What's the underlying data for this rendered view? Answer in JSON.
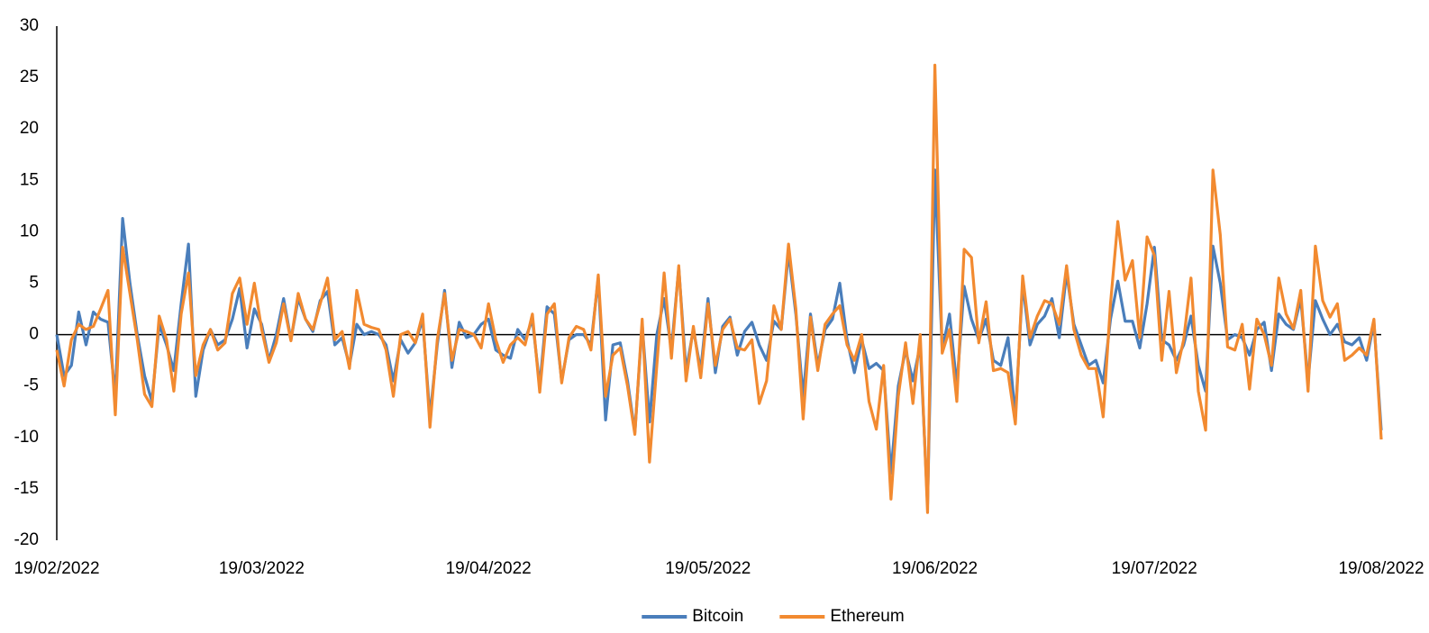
{
  "chart_data": {
    "type": "line",
    "categories": [
      "19/02/2022",
      null,
      null,
      null,
      null,
      null,
      null,
      null,
      null,
      null,
      null,
      null,
      null,
      null,
      null,
      null,
      null,
      null,
      null,
      null,
      null,
      null,
      null,
      null,
      null,
      null,
      null,
      null,
      "19/03/2022",
      null,
      null,
      null,
      null,
      null,
      null,
      null,
      null,
      null,
      null,
      null,
      null,
      null,
      null,
      null,
      null,
      null,
      null,
      null,
      null,
      null,
      null,
      null,
      null,
      null,
      null,
      null,
      null,
      null,
      null,
      "19/04/2022",
      null,
      null,
      null,
      null,
      null,
      null,
      null,
      null,
      null,
      null,
      null,
      null,
      null,
      null,
      null,
      null,
      null,
      null,
      null,
      null,
      null,
      null,
      null,
      null,
      null,
      null,
      null,
      null,
      null,
      "19/05/2022",
      null,
      null,
      null,
      null,
      null,
      null,
      null,
      null,
      null,
      null,
      null,
      null,
      null,
      null,
      null,
      null,
      null,
      null,
      null,
      null,
      null,
      null,
      null,
      null,
      null,
      null,
      null,
      null,
      null,
      null,
      "19/06/2022",
      null,
      null,
      null,
      null,
      null,
      null,
      null,
      null,
      null,
      null,
      null,
      null,
      null,
      null,
      null,
      null,
      null,
      null,
      null,
      null,
      null,
      null,
      null,
      null,
      null,
      null,
      null,
      null,
      null,
      "19/07/2022",
      null,
      null,
      null,
      null,
      null,
      null,
      null,
      null,
      null,
      null,
      null,
      null,
      null,
      null,
      null,
      null,
      null,
      null,
      null,
      null,
      null,
      null,
      null,
      null,
      null,
      null,
      null,
      null,
      null,
      null,
      "19/08/2022"
    ],
    "series": [
      {
        "name": "Bitcoin",
        "color": "#4a7ebb",
        "values": [
          0,
          -4,
          -3,
          2.2,
          -1,
          2.2,
          1.5,
          1.2,
          -6,
          11.3,
          5,
          0,
          -4,
          -6.5,
          1,
          -1,
          -3.5,
          3,
          8.8,
          -6,
          -1.5,
          0.5,
          -1,
          -0.5,
          1.5,
          4.5,
          -1.3,
          2.5,
          1,
          -2.5,
          0,
          3.5,
          -0.5,
          3.5,
          1.5,
          0.3,
          3.3,
          4.2,
          -1,
          -0.3,
          -3,
          1,
          0,
          0.3,
          0,
          -1,
          -4.5,
          -0.5,
          -1.8,
          -0.8,
          1.5,
          -8,
          -1,
          4.3,
          -3.2,
          1.2,
          -0.3,
          0,
          1,
          1.5,
          -1.5,
          -2,
          -2.3,
          0.5,
          -0.5,
          1.5,
          -5,
          2.7,
          2,
          -4.5,
          -0.5,
          0,
          0,
          -1,
          5.5,
          -8.3,
          -1,
          -0.8,
          -4.5,
          -9.5,
          1,
          -8.5,
          0,
          3.5,
          -1.5,
          6.5,
          -3.5,
          0.5,
          -3.5,
          3.5,
          -3.7,
          0.8,
          1.7,
          -2,
          0.3,
          1.2,
          -1,
          -2.5,
          1.3,
          0.5,
          8,
          2,
          -6,
          2,
          -3,
          0.5,
          1.5,
          5,
          -0.5,
          -3.7,
          -0.5,
          -3.3,
          -2.8,
          -3.5,
          -13.5,
          -5,
          -1.5,
          -4.5,
          -1,
          -16.5,
          16,
          -1.5,
          2,
          -5,
          4.7,
          1.5,
          -0.5,
          1.5,
          -2.5,
          -3,
          -0.3,
          -8,
          5,
          -1,
          1,
          1.8,
          3.5,
          -0.3,
          6,
          1,
          -1,
          -3,
          -2.5,
          -4.7,
          1.5,
          5.2,
          1.3,
          1.3,
          -1.3,
          3,
          8.5,
          -0.5,
          -1,
          -2.5,
          -1,
          1.8,
          -3,
          -5.5,
          8.6,
          5,
          -0.5,
          0,
          -0.3,
          -2,
          0.5,
          1.2,
          -3.5,
          2,
          1,
          0.5,
          3.5,
          -4.5,
          3.3,
          1.5,
          0,
          1,
          -0.7,
          -1,
          -0.3,
          -2.5,
          1.2,
          -9.3
        ]
      },
      {
        "name": "Ethereum",
        "color": "#f28a30",
        "values": [
          -1.5,
          -5,
          -0.5,
          1,
          0.5,
          0.8,
          2.5,
          4.3,
          -7.8,
          8.5,
          4,
          -0.5,
          -5.8,
          -7,
          1.8,
          -0.5,
          -5.5,
          2,
          6,
          -4,
          -1,
          0.5,
          -1.5,
          -0.8,
          4,
          5.5,
          1,
          5,
          0.5,
          -2.7,
          -0.8,
          3,
          -0.6,
          4,
          1.5,
          0.5,
          3,
          5.5,
          -0.5,
          0.3,
          -3.3,
          4.3,
          1,
          0.7,
          0.5,
          -1.5,
          -6,
          0,
          0.3,
          -0.8,
          2,
          -9,
          -0.5,
          4,
          -2.5,
          0.5,
          0.3,
          0,
          -1.3,
          3,
          -0.5,
          -2.7,
          -1,
          -0.3,
          -1,
          2,
          -5.6,
          2,
          3,
          -4.7,
          -0.3,
          0.8,
          0.5,
          -1.5,
          5.8,
          -6,
          -2,
          -1.3,
          -5,
          -9.7,
          1.5,
          -12.4,
          -3,
          6,
          -2.3,
          6.7,
          -4.5,
          0.8,
          -4.2,
          3,
          -3,
          0.5,
          1.5,
          -1.3,
          -1.5,
          -0.5,
          -6.7,
          -4.5,
          2.8,
          0.5,
          8.8,
          2.5,
          -8.2,
          1.7,
          -3.5,
          1,
          2,
          2.8,
          -1,
          -2.5,
          0,
          -6.5,
          -9.2,
          -3,
          -16,
          -6,
          -0.8,
          -6.7,
          0,
          -17.3,
          26.2,
          -1.8,
          0.5,
          -6.5,
          8.3,
          7.5,
          -0.8,
          3.2,
          -3.5,
          -3.3,
          -3.7,
          -8.7,
          5.7,
          -0.3,
          1.8,
          3.3,
          3,
          1,
          6.7,
          0.5,
          -2,
          -3.3,
          -3.3,
          -8,
          3,
          11,
          5.3,
          7.2,
          -0.3,
          9.5,
          7.7,
          -2.5,
          4.2,
          -3.7,
          -0.5,
          5.5,
          -5.5,
          -9.3,
          16,
          9.7,
          -1.2,
          -1.5,
          1,
          -5.3,
          1.5,
          0,
          -3,
          5.5,
          2,
          0.6,
          4.3,
          -5.5,
          8.6,
          3.3,
          1.7,
          3,
          -2.5,
          -2,
          -1.3,
          -2,
          1.5,
          -10.2
        ]
      }
    ],
    "ylim": [
      -20,
      30
    ],
    "yticks": [
      -20,
      -15,
      -10,
      -5,
      0,
      5,
      10,
      15,
      20,
      25,
      30
    ],
    "grid": false,
    "legend": "bottom"
  }
}
